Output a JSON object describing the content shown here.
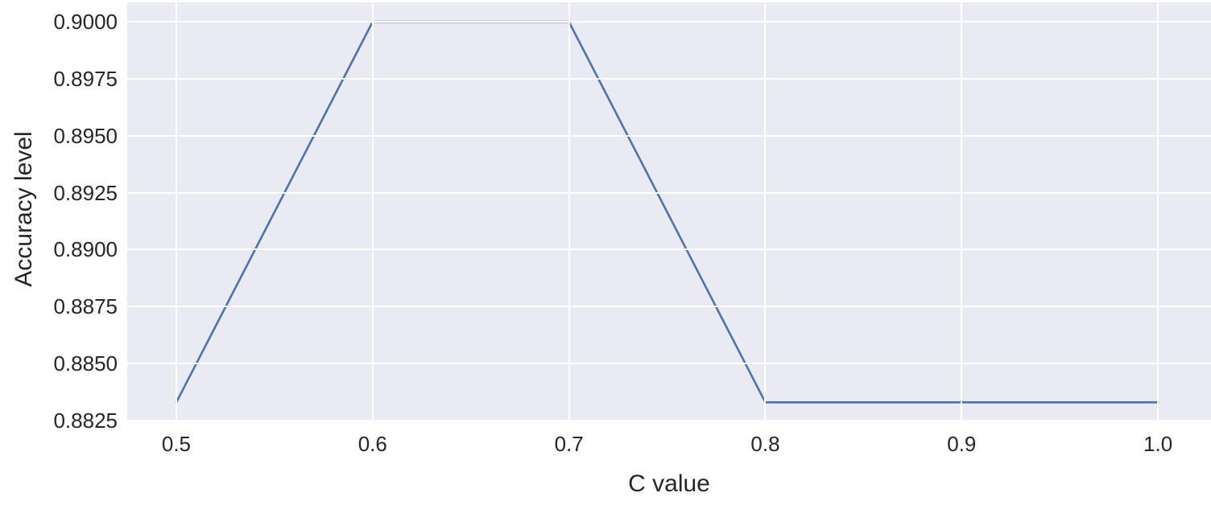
{
  "chart_data": {
    "type": "line",
    "title": "",
    "xlabel": "C value",
    "ylabel": "Accuracy level",
    "x": [
      0.5,
      0.6,
      0.7,
      0.8,
      0.9,
      1.0
    ],
    "y": [
      0.8833,
      0.9,
      0.9,
      0.8833,
      0.8833,
      0.8833
    ],
    "x_ticks": [
      0.5,
      0.6,
      0.7,
      0.8,
      0.9,
      1.0
    ],
    "x_tick_labels": [
      "0.5",
      "0.6",
      "0.7",
      "0.8",
      "0.9",
      "1.0"
    ],
    "y_ticks": [
      0.8825,
      0.885,
      0.8875,
      0.89,
      0.8925,
      0.895,
      0.8975,
      0.9
    ],
    "y_tick_labels": [
      "0.8825",
      "0.8850",
      "0.8875",
      "0.8900",
      "0.8925",
      "0.8950",
      "0.8975",
      "0.9000"
    ],
    "xlim": [
      0.475,
      1.027
    ],
    "ylim": [
      0.8825,
      0.90085
    ],
    "grid": true,
    "legend_position": "none",
    "colors": {
      "line": "#4c72b0",
      "plot_background": "#eaeaf2",
      "grid": "#ffffff",
      "text": "#262626",
      "figure_background": "#ffffff"
    }
  }
}
